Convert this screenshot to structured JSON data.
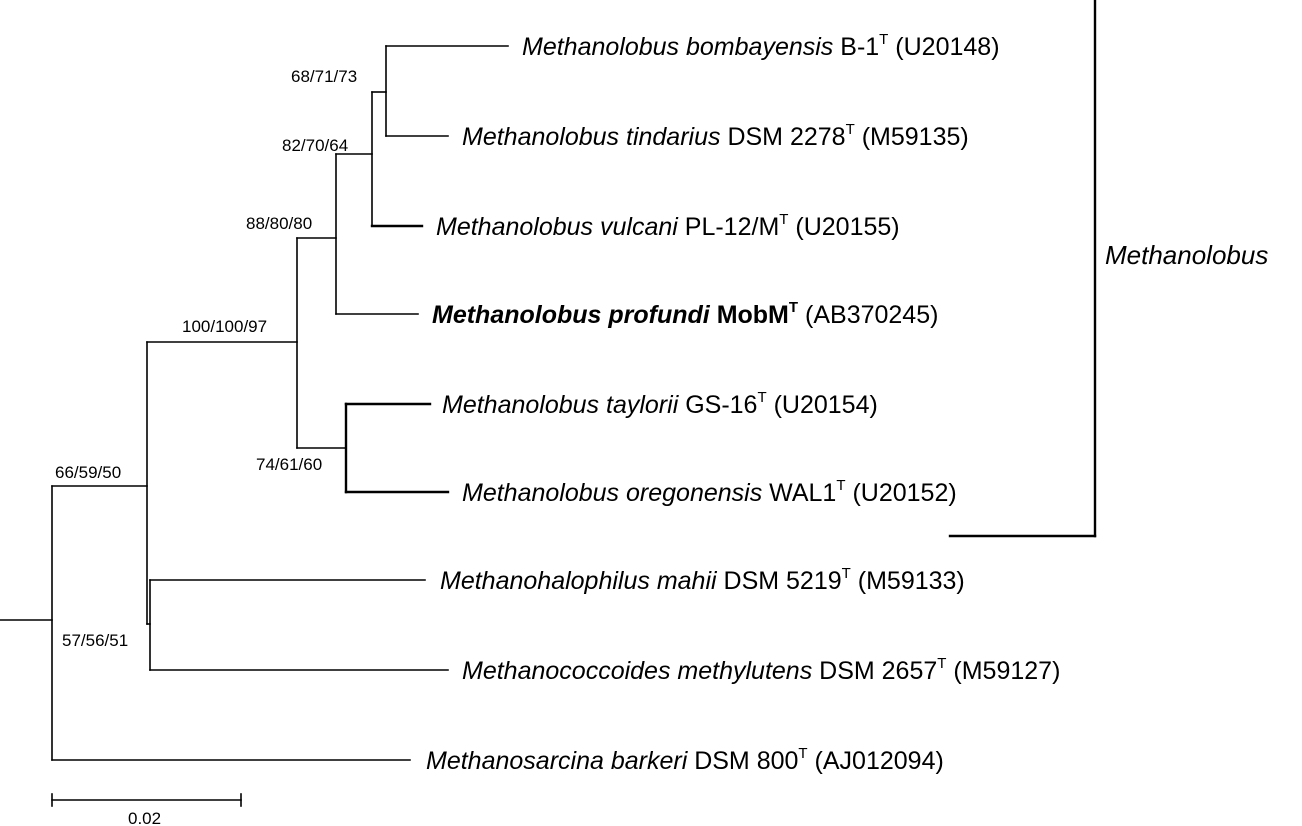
{
  "taxa": [
    {
      "genus_species": "Methanolobus bombayensis",
      "strain": "B-1",
      "type": "T",
      "accession": "(U20148)",
      "bold": false
    },
    {
      "genus_species": "Methanolobus tindarius",
      "strain": "DSM 2278",
      "type": "T",
      "accession": "(M59135)",
      "bold": false
    },
    {
      "genus_species": "Methanolobus vulcani",
      "strain": "PL-12/M",
      "type": "T",
      "accession": "(U20155)",
      "bold": false
    },
    {
      "genus_species": "Methanolobus profundi",
      "strain": "MobM",
      "type": "T",
      "accession": "(AB370245)",
      "bold": true
    },
    {
      "genus_species": "Methanolobus taylorii",
      "strain": "GS-16",
      "type": "T",
      "accession": "(U20154)",
      "bold": false
    },
    {
      "genus_species": "Methanolobus oregonensis",
      "strain": "WAL1",
      "type": "T",
      "accession": "(U20152)",
      "bold": false
    },
    {
      "genus_species": "Methanohalophilus mahii",
      "strain": "DSM 5219",
      "type": "T",
      "accession": "(M59133)",
      "bold": false
    },
    {
      "genus_species": "Methanococcoides methylutens",
      "strain": "DSM 2657",
      "type": "T",
      "accession": "(M59127)",
      "bold": false
    },
    {
      "genus_species": "Methanosarcina barkeri",
      "strain": "DSM 800",
      "type": "T",
      "accession": "(AJ012094)",
      "bold": false
    }
  ],
  "bootstrap": {
    "n1": "68/71/73",
    "n2": "82/70/64",
    "n3": "88/80/80",
    "n4": "100/100/97",
    "n5": "74/61/60",
    "n6": "66/59/50",
    "n7": "57/56/51"
  },
  "clade_label": "Methanolobus",
  "scale_bar_label": "0.02"
}
